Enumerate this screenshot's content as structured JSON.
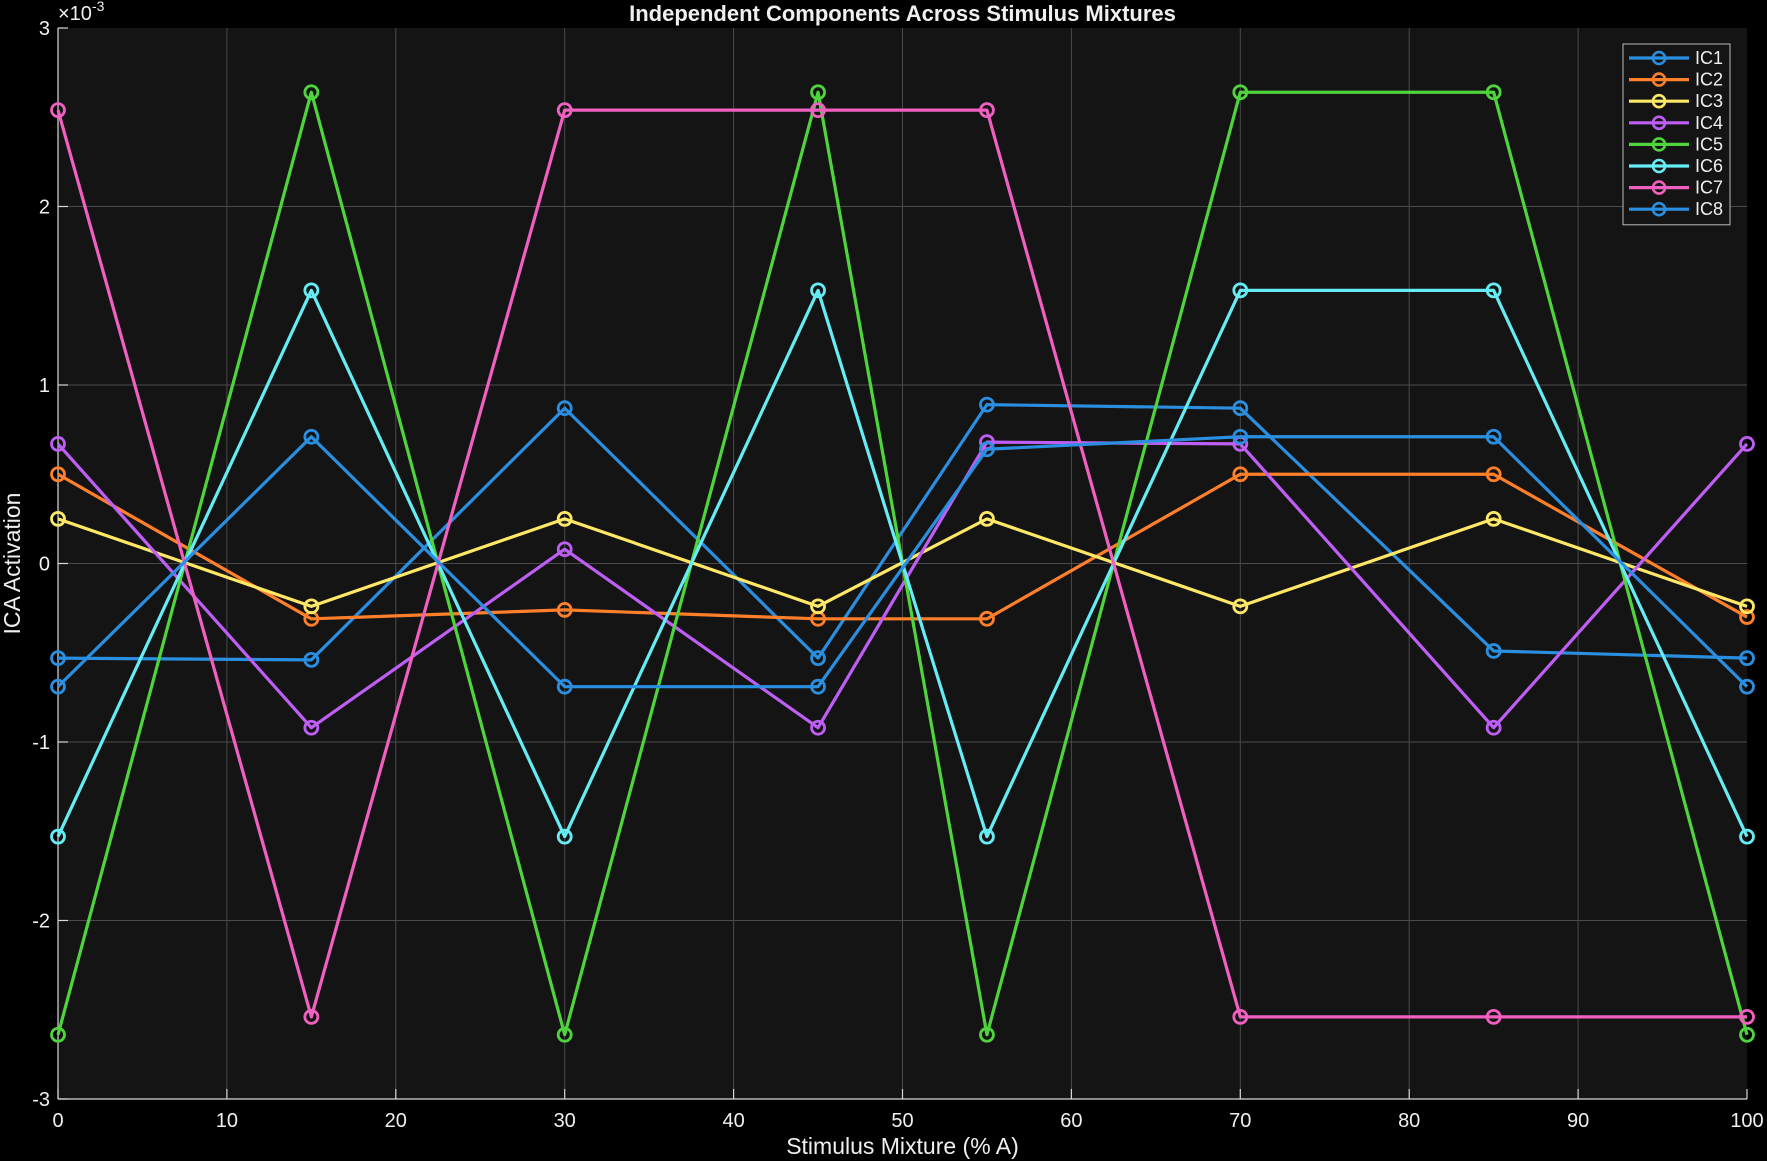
{
  "chart_data": {
    "type": "line",
    "title": "Independent Components Across Stimulus Mixtures",
    "xlabel": "Stimulus Mixture (% A)",
    "ylabel": "ICA Activation",
    "y_exponent_label": "×10",
    "y_exponent_power": "-3",
    "xlim": [
      0,
      100
    ],
    "ylim": [
      -3,
      3
    ],
    "x_ticks": [
      0,
      10,
      20,
      30,
      40,
      50,
      60,
      70,
      80,
      90,
      100
    ],
    "x_tick_labels": [
      "0",
      "10",
      "20",
      "30",
      "40",
      "50",
      "60",
      "70",
      "80",
      "90",
      "100"
    ],
    "y_ticks": [
      -3,
      -2,
      -1,
      0,
      1,
      2,
      3
    ],
    "y_tick_labels": [
      "-3",
      "-2",
      "-1",
      "0",
      "1",
      "2",
      "3"
    ],
    "grid": true,
    "legend_position": "top-right",
    "marker": "circle",
    "background": "#141414",
    "x": [
      0,
      15,
      30,
      45,
      55,
      70,
      85,
      100
    ],
    "series": [
      {
        "name": "IC1",
        "color": "#2a8fe0",
        "values": [
          -0.53,
          -0.54,
          0.87,
          -0.53,
          0.89,
          0.87,
          -0.49,
          -0.53
        ]
      },
      {
        "name": "IC2",
        "color": "#ff7f2a",
        "values": [
          0.5,
          -0.31,
          -0.26,
          -0.31,
          -0.31,
          0.5,
          0.5,
          -0.3
        ]
      },
      {
        "name": "IC3",
        "color": "#ffe866",
        "values": [
          0.25,
          -0.24,
          0.25,
          -0.24,
          0.25,
          -0.24,
          0.25,
          -0.24
        ]
      },
      {
        "name": "IC4",
        "color": "#bf5ef5",
        "values": [
          0.67,
          -0.92,
          0.08,
          -0.92,
          0.68,
          0.67,
          -0.92,
          0.67
        ]
      },
      {
        "name": "IC5",
        "color": "#4fd43d",
        "values": [
          -2.64,
          2.64,
          -2.64,
          2.64,
          -2.64,
          2.64,
          2.64,
          -2.64
        ]
      },
      {
        "name": "IC6",
        "color": "#66ecf4",
        "values": [
          -1.53,
          1.53,
          -1.53,
          1.53,
          -1.53,
          1.53,
          1.53,
          -1.53
        ]
      },
      {
        "name": "IC7",
        "color": "#f060c0",
        "values": [
          2.54,
          -2.54,
          2.54,
          2.54,
          2.54,
          -2.54,
          -2.54,
          -2.54
        ]
      },
      {
        "name": "IC8",
        "color": "#2a8fe0",
        "values": [
          -0.69,
          0.71,
          -0.69,
          -0.69,
          0.64,
          0.71,
          0.71,
          -0.69
        ]
      }
    ]
  }
}
